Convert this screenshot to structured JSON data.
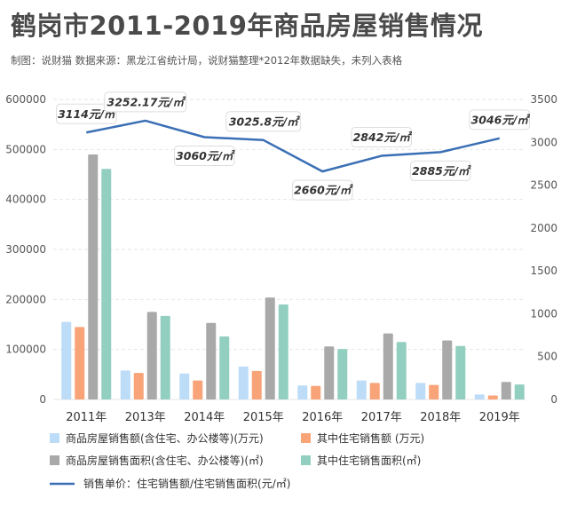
{
  "header": {
    "title": "鹤岗市2011-2019年商品房屋销售情况",
    "subtitle": "制图：说财猫   数据来源：黑龙江省统计局，说财猫整理*2012年数据缺失，未列入表格"
  },
  "chart_data": {
    "type": "bar",
    "title": "鹤岗市2011-2019年商品房屋销售情况",
    "categories": [
      "2011年",
      "2013年",
      "2014年",
      "2015年",
      "2016年",
      "2017年",
      "2018年",
      "2019年"
    ],
    "y_left": {
      "min": 0,
      "max": 600000,
      "ticks": [
        "0",
        "100000",
        "200000",
        "300000",
        "400000",
        "500000",
        "600000"
      ]
    },
    "y_right": {
      "min": 0,
      "max": 3500,
      "ticks": [
        "0",
        "500",
        "1000",
        "1500",
        "2000",
        "2500",
        "3000",
        "3500"
      ]
    },
    "grid": true,
    "legend_position": "bottom",
    "series": [
      {
        "name": "商品房屋销售额(含住宅、办公楼等)(万元)",
        "type": "bar",
        "axis": "left",
        "color": "#bcdcf7",
        "values": [
          155000,
          58000,
          52000,
          66000,
          28000,
          38000,
          33000,
          10000
        ]
      },
      {
        "name": "其中住宅销售额 (万元)",
        "type": "bar",
        "axis": "left",
        "color": "#f8a478",
        "values": [
          145000,
          53000,
          38000,
          57000,
          27000,
          33000,
          29000,
          8000
        ]
      },
      {
        "name": "商品房屋销售面积(含住宅、办公楼等)(㎡)",
        "type": "bar",
        "axis": "left",
        "color": "#a9a9a9",
        "values": [
          490000,
          175000,
          153000,
          204000,
          106000,
          132000,
          118000,
          35000
        ]
      },
      {
        "name": "其中住宅销售面积(㎡)",
        "type": "bar",
        "axis": "left",
        "color": "#92cfc0",
        "values": [
          461000,
          167000,
          126000,
          190000,
          101000,
          115000,
          107000,
          30000
        ]
      },
      {
        "name": "销售单价：住宅销售额/住宅销售面积(元/㎡)",
        "type": "line",
        "axis": "right",
        "color": "#3a6fb5",
        "values": [
          3114,
          3252.17,
          3060,
          3025.8,
          2660,
          2842,
          2885,
          3046
        ],
        "labels": [
          "3114元/㎡",
          "3252.17元/㎡",
          "3060元/㎡",
          "3025.8元/㎡",
          "2660元/㎡",
          "2842元/㎡",
          "2885元/㎡",
          "3046元/㎡"
        ]
      }
    ]
  }
}
